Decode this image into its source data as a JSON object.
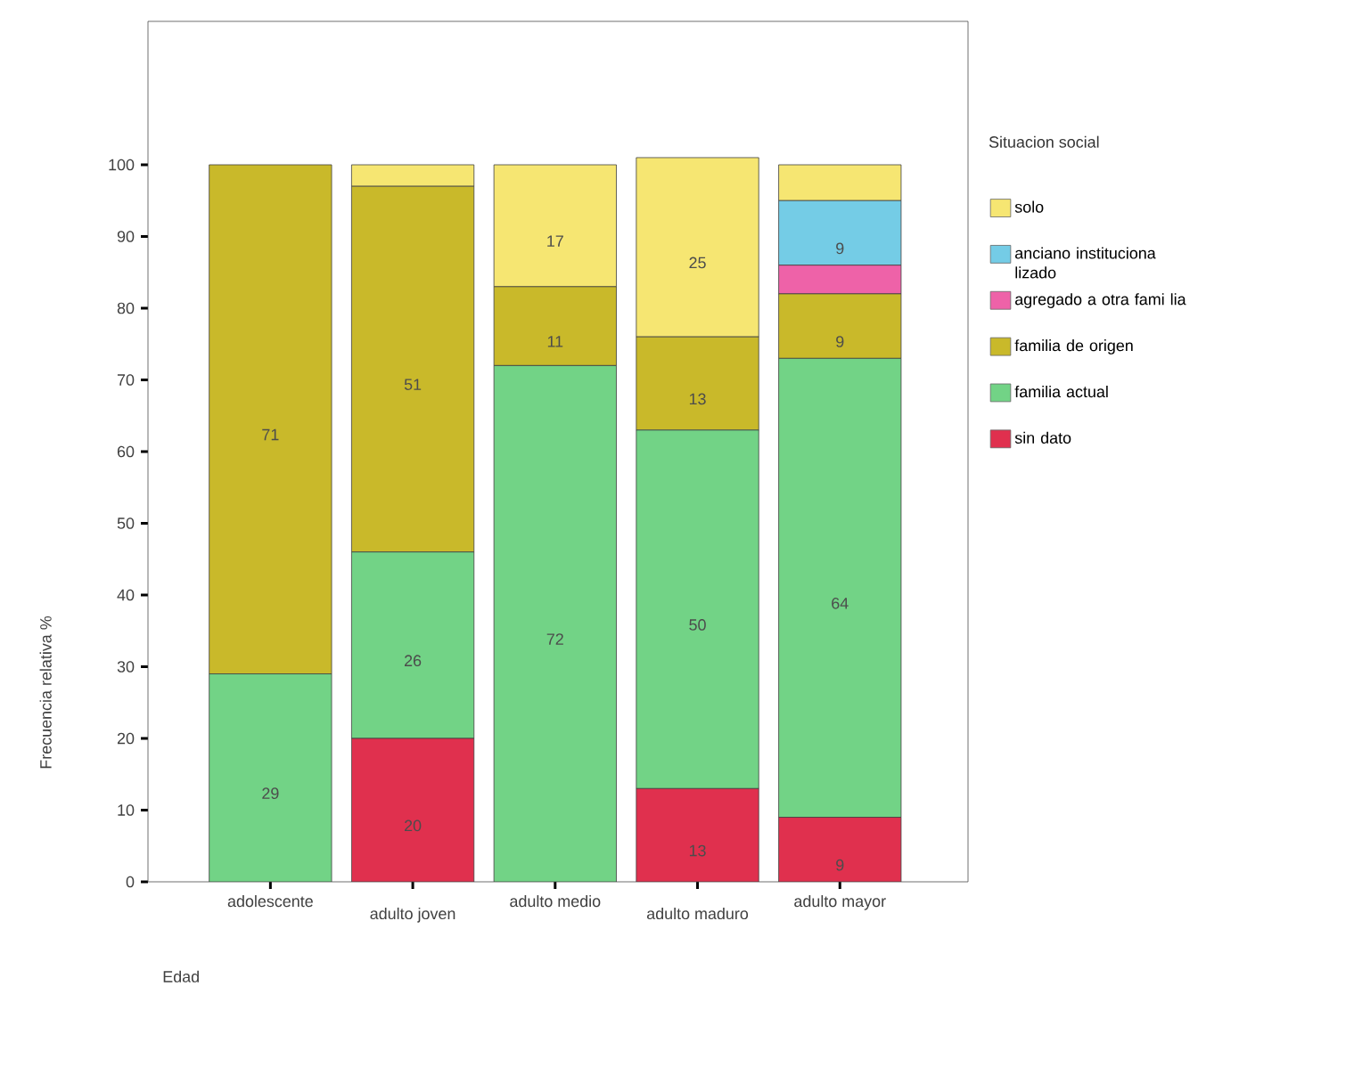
{
  "chart_data": {
    "type": "bar",
    "stacked": true,
    "xlabel": "Edad",
    "ylabel": "Frecuencia relativa %",
    "legend_title": "Situacion social",
    "categories": [
      "adolescente",
      "adulto joven",
      "adulto medio",
      "adulto maduro",
      "adulto mayor"
    ],
    "series": [
      {
        "name": "sin dato",
        "color": "#e0304e",
        "values": [
          0,
          20,
          0,
          13,
          9
        ],
        "value_labels": [
          null,
          "20",
          null,
          "13",
          "9"
        ]
      },
      {
        "name": "familia actual",
        "color": "#72d386",
        "values": [
          29,
          26,
          72,
          50,
          64
        ],
        "value_labels": [
          "29",
          "26",
          "72",
          "50",
          "64"
        ]
      },
      {
        "name": "familia de origen",
        "color": "#c9b92a",
        "values": [
          71,
          51,
          11,
          13,
          9
        ],
        "value_labels": [
          "71",
          "51",
          "11",
          "13",
          "9"
        ]
      },
      {
        "name": "agregado a otra fami lia",
        "color": "#ee62a8",
        "values": [
          0,
          0,
          0,
          0,
          4
        ],
        "value_labels": [
          null,
          null,
          null,
          null,
          null
        ]
      },
      {
        "name": "anciano instituciona lizado",
        "color": "#74cce6",
        "values": [
          0,
          0,
          0,
          0,
          9
        ],
        "value_labels": [
          null,
          null,
          null,
          null,
          "9"
        ]
      },
      {
        "name": "solo",
        "color": "#f6e672",
        "values": [
          0,
          3,
          17,
          25,
          5
        ],
        "value_labels": [
          null,
          null,
          "17",
          "25",
          null
        ]
      }
    ],
    "ylim": [
      0,
      120
    ],
    "yticks": [
      0,
      10,
      20,
      30,
      40,
      50,
      60,
      70,
      80,
      90,
      100
    ],
    "legend": "right",
    "grid": false
  }
}
